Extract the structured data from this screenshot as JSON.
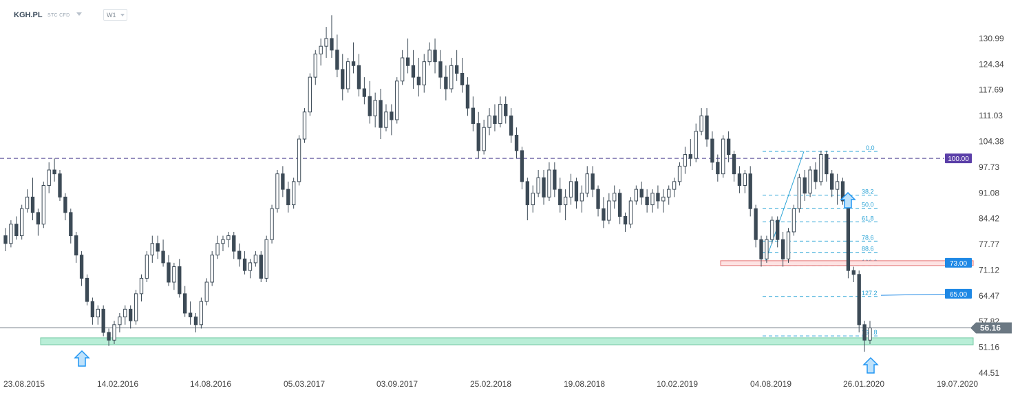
{
  "header": {
    "symbol": "KGH.PL",
    "subtitle": "STC CFD",
    "timeframe": "W1"
  },
  "chart_data": {
    "type": "candlestick",
    "timeframe": "W1",
    "ylim": [
      44.51,
      136
    ],
    "y_ticks": [
      "130.99",
      "124.34",
      "117.69",
      "111.03",
      "104.38",
      "97.73",
      "91.08",
      "84.42",
      "77.77",
      "71.12",
      "64.47",
      "57.82",
      "51.16",
      "44.51"
    ],
    "x_ticks": [
      "23.08.2015",
      "14.02.2016",
      "14.08.2016",
      "05.03.2017",
      "03.09.2017",
      "25.02.2018",
      "19.08.2018",
      "10.02.2019",
      "04.08.2019",
      "26.01.2020",
      "19.07.2020"
    ],
    "current_price": "56.16",
    "price_levels": [
      {
        "label": "100.00",
        "value": 100.0,
        "style": "dashed",
        "color": "#5b3fa8"
      },
      {
        "label": "73.00",
        "value": 73.0,
        "style": "zone",
        "color": "#1e88e5"
      },
      {
        "label": "65.00",
        "value": 65.0,
        "style": "line",
        "color": "#1e88e5"
      }
    ],
    "support_zone": [
      51.8,
      53.6
    ],
    "fibonacci": {
      "high": 101.8,
      "low": 72.3,
      "levels": [
        {
          "label": "0.0",
          "value": 101.8
        },
        {
          "label": "38.2",
          "value": 90.5
        },
        {
          "label": "50.0",
          "value": 87.1
        },
        {
          "label": "61.8",
          "value": 83.6
        },
        {
          "label": "78.6",
          "value": 78.6
        },
        {
          "label": "88.6",
          "value": 75.7
        },
        {
          "label": "100.0",
          "value": 72.3
        },
        {
          "label": "127.2",
          "value": 64.3
        },
        {
          "label": "161.8",
          "value": 54.1
        }
      ]
    },
    "candles": [
      [
        80,
        82,
        76,
        78
      ],
      [
        78,
        84,
        77,
        83
      ],
      [
        83,
        85,
        79,
        80
      ],
      [
        80,
        88,
        79,
        87
      ],
      [
        87,
        92,
        86,
        90
      ],
      [
        90,
        95,
        84,
        86
      ],
      [
        86,
        87,
        80,
        83
      ],
      [
        83,
        94,
        82,
        93
      ],
      [
        93,
        99,
        91,
        97
      ],
      [
        97,
        100,
        94,
        96
      ],
      [
        96,
        97,
        89,
        90
      ],
      [
        90,
        91,
        84,
        86
      ],
      [
        86,
        87,
        78,
        80
      ],
      [
        80,
        81,
        73,
        75
      ],
      [
        75,
        76,
        67,
        69
      ],
      [
        69,
        70,
        62,
        63
      ],
      [
        63,
        64,
        57,
        59
      ],
      [
        59,
        62,
        57,
        61
      ],
      [
        61,
        62,
        54,
        55
      ],
      [
        55,
        56,
        51.5,
        53
      ],
      [
        53,
        58,
        52,
        57
      ],
      [
        57,
        60,
        55,
        59
      ],
      [
        59,
        62,
        57,
        61
      ],
      [
        61,
        62,
        56,
        58
      ],
      [
        58,
        66,
        57,
        65
      ],
      [
        65,
        70,
        63,
        69
      ],
      [
        69,
        76,
        68,
        75
      ],
      [
        75,
        80,
        73,
        78
      ],
      [
        78,
        80,
        74,
        76
      ],
      [
        76,
        79,
        72,
        73
      ],
      [
        73,
        75,
        67,
        68
      ],
      [
        68,
        73,
        66,
        72
      ],
      [
        72,
        74,
        64,
        65
      ],
      [
        65,
        67,
        59,
        60
      ],
      [
        60,
        63,
        57,
        59
      ],
      [
        59,
        60,
        55,
        57
      ],
      [
        57,
        64,
        56,
        63
      ],
      [
        63,
        69,
        62,
        68
      ],
      [
        68,
        76,
        67,
        75
      ],
      [
        75,
        80,
        74,
        78
      ],
      [
        78,
        80,
        76,
        79
      ],
      [
        79,
        81,
        77,
        80
      ],
      [
        80,
        81,
        74,
        76
      ],
      [
        76,
        78,
        72,
        74
      ],
      [
        74,
        76,
        70,
        71
      ],
      [
        71,
        74,
        69,
        73
      ],
      [
        73,
        76,
        72,
        75
      ],
      [
        75,
        76,
        68,
        69
      ],
      [
        69,
        80,
        68,
        79
      ],
      [
        79,
        88,
        78,
        87
      ],
      [
        87,
        97,
        86,
        96
      ],
      [
        96,
        98,
        90,
        92
      ],
      [
        92,
        94,
        86,
        88
      ],
      [
        88,
        95,
        87,
        94
      ],
      [
        94,
        106,
        93,
        105
      ],
      [
        105,
        113,
        104,
        112
      ],
      [
        112,
        122,
        111,
        121
      ],
      [
        121,
        128,
        119,
        127
      ],
      [
        127,
        131,
        124,
        129
      ],
      [
        129,
        134,
        126,
        131
      ],
      [
        131,
        137,
        126,
        128
      ],
      [
        128,
        132,
        121,
        123
      ],
      [
        123,
        127,
        115,
        118
      ],
      [
        118,
        126,
        117,
        125
      ],
      [
        125,
        130,
        122,
        124
      ],
      [
        124,
        127,
        116,
        118
      ],
      [
        118,
        121,
        114,
        116
      ],
      [
        116,
        120,
        109,
        111
      ],
      [
        111,
        117,
        108,
        115
      ],
      [
        115,
        118,
        105,
        108
      ],
      [
        108,
        114,
        107,
        112
      ],
      [
        112,
        114,
        106,
        110
      ],
      [
        110,
        121,
        109,
        120
      ],
      [
        120,
        128,
        119,
        126
      ],
      [
        126,
        131,
        122,
        124
      ],
      [
        124,
        128,
        118,
        121
      ],
      [
        121,
        126,
        116,
        119
      ],
      [
        119,
        127,
        117,
        125
      ],
      [
        125,
        130,
        124,
        128
      ],
      [
        128,
        131,
        122,
        125
      ],
      [
        125,
        128,
        118,
        121
      ],
      [
        121,
        124,
        115,
        118
      ],
      [
        118,
        126,
        117,
        124
      ],
      [
        124,
        128,
        120,
        122
      ],
      [
        122,
        126,
        117,
        119
      ],
      [
        119,
        121,
        111,
        113
      ],
      [
        113,
        116,
        107,
        109
      ],
      [
        109,
        112,
        100,
        102
      ],
      [
        102,
        110,
        101,
        108
      ],
      [
        108,
        113,
        106,
        111
      ],
      [
        111,
        114,
        107,
        109
      ],
      [
        109,
        116,
        108,
        114
      ],
      [
        114,
        116,
        109,
        111
      ],
      [
        111,
        113,
        104,
        106
      ],
      [
        106,
        108,
        100,
        102
      ],
      [
        102,
        103,
        92,
        94
      ],
      [
        94,
        95,
        84,
        88
      ],
      [
        88,
        93,
        86,
        91
      ],
      [
        91,
        97,
        90,
        95
      ],
      [
        95,
        97,
        88,
        90
      ],
      [
        90,
        99,
        89,
        97
      ],
      [
        97,
        99,
        90,
        92
      ],
      [
        92,
        95,
        86,
        88
      ],
      [
        88,
        92,
        84,
        90
      ],
      [
        90,
        96,
        88,
        94
      ],
      [
        94,
        95,
        87,
        89
      ],
      [
        89,
        93,
        86,
        91
      ],
      [
        91,
        98,
        90,
        96
      ],
      [
        96,
        98,
        90,
        92
      ],
      [
        92,
        93,
        85,
        87
      ],
      [
        87,
        90,
        82,
        84
      ],
      [
        84,
        91,
        83,
        89
      ],
      [
        89,
        93,
        87,
        91
      ],
      [
        91,
        92,
        83,
        85
      ],
      [
        85,
        86,
        81,
        83
      ],
      [
        83,
        90,
        82,
        89
      ],
      [
        89,
        93,
        88,
        92
      ],
      [
        92,
        94,
        88,
        90
      ],
      [
        90,
        92,
        86,
        88
      ],
      [
        88,
        92,
        86,
        91
      ],
      [
        91,
        93,
        87,
        89
      ],
      [
        89,
        92,
        86,
        90
      ],
      [
        90,
        93,
        88,
        92
      ],
      [
        92,
        95,
        90,
        94
      ],
      [
        94,
        99,
        93,
        98
      ],
      [
        98,
        103,
        96,
        101
      ],
      [
        101,
        105,
        98,
        100
      ],
      [
        100,
        109,
        99,
        107
      ],
      [
        107,
        113,
        106,
        111
      ],
      [
        111,
        113,
        103,
        105
      ],
      [
        105,
        107,
        97,
        99
      ],
      [
        99,
        101,
        94,
        96
      ],
      [
        96,
        106,
        95,
        105
      ],
      [
        105,
        107,
        99,
        101
      ],
      [
        101,
        102,
        94,
        96
      ],
      [
        96,
        98,
        91,
        93
      ],
      [
        93,
        97,
        91,
        96
      ],
      [
        96,
        98,
        85,
        87
      ],
      [
        87,
        88,
        77,
        79
      ],
      [
        79,
        80,
        72,
        74
      ],
      [
        74,
        80,
        73,
        79
      ],
      [
        79,
        85,
        78,
        84
      ],
      [
        84,
        85,
        77,
        79
      ],
      [
        79,
        81,
        72,
        74
      ],
      [
        74,
        82,
        73,
        81
      ],
      [
        81,
        88,
        80,
        87
      ],
      [
        87,
        96,
        86,
        95
      ],
      [
        95,
        97,
        89,
        91
      ],
      [
        91,
        98,
        90,
        97
      ],
      [
        97,
        99,
        92,
        94
      ],
      [
        94,
        102,
        93,
        101
      ],
      [
        101,
        102,
        94,
        96
      ],
      [
        96,
        97,
        90,
        92
      ],
      [
        92,
        96,
        88,
        94
      ],
      [
        94,
        95,
        88,
        89
      ],
      [
        89,
        90,
        69,
        71
      ],
      [
        71,
        72,
        68,
        70
      ],
      [
        70,
        71,
        55,
        57
      ],
      [
        57,
        58,
        50,
        53
      ],
      [
        53,
        58,
        52,
        56.16
      ]
    ]
  }
}
